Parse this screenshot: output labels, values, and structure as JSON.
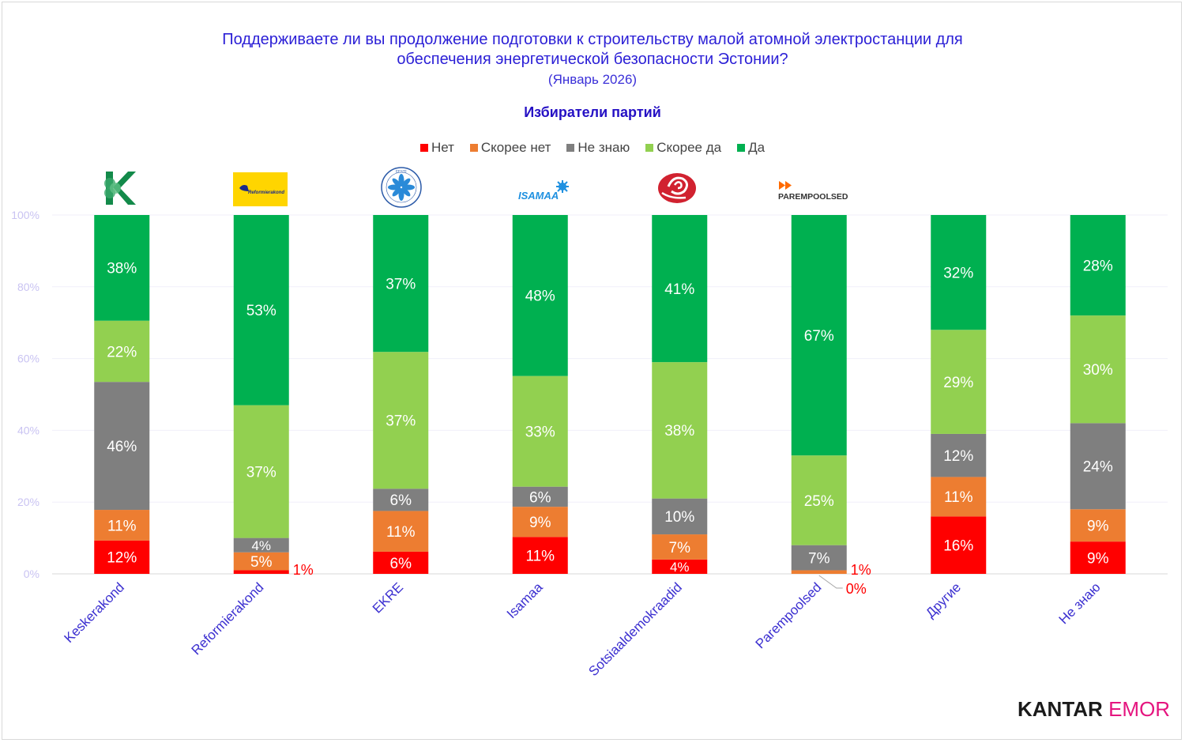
{
  "chart_data": {
    "type": "bar",
    "stacked": true,
    "normalized_to_100": true,
    "title": "Поддерживаете ли вы продолжение подготовки к строительству малой атомной электростанции для обеспечения энергетической безопасности Эстонии?",
    "title_line1": "Поддерживаете ли вы продолжение подготовки к строительству малой атомной электростанции для",
    "title_line2": "обеспечения энергетической безопасности Эстонии?",
    "date_note": "(Январь 2026)",
    "subtitle": "Избиратели партий",
    "xlabel": "",
    "ylabel": "",
    "ylim": [
      0,
      100
    ],
    "yticks": [
      "0%",
      "20%",
      "40%",
      "60%",
      "80%",
      "100%"
    ],
    "ytick_values": [
      0,
      20,
      40,
      60,
      80,
      100
    ],
    "grid": true,
    "legend_position": "top",
    "categories": [
      "Keskerakond",
      "Reformierakond",
      "EKRE",
      "Isamaa",
      "Sotsiaaldemokraadid",
      "Parempoolsed",
      "Другие",
      "Не знаю"
    ],
    "series": [
      {
        "name": "Нет",
        "color": "#ff0000",
        "values": [
          12,
          1,
          6,
          11,
          4,
          0,
          16,
          9
        ]
      },
      {
        "name": "Скорее нет",
        "color": "#ed7d31",
        "values": [
          11,
          5,
          11,
          9,
          7,
          1,
          11,
          9
        ]
      },
      {
        "name": "Не знаю",
        "color": "#7f7f7f",
        "values": [
          46,
          4,
          6,
          6,
          10,
          7,
          12,
          24
        ]
      },
      {
        "name": "Скорее да",
        "color": "#92d050",
        "values": [
          22,
          37,
          37,
          33,
          38,
          25,
          29,
          30
        ]
      },
      {
        "name": "Да",
        "color": "#00b050",
        "values": [
          38,
          53,
          37,
          48,
          41,
          67,
          32,
          28
        ]
      }
    ],
    "outside_labels": [
      {
        "category": "Reformierakond",
        "series": "Нет",
        "text": "1%"
      },
      {
        "category": "Parempoolsed",
        "series": "Скорее нет",
        "text": "1%"
      },
      {
        "category": "Parempoolsed",
        "series": "Нет",
        "text": "0%",
        "leader_line": true
      }
    ]
  },
  "logos": [
    {
      "party": "Keskerakond",
      "icon": "keskerakond-logo"
    },
    {
      "party": "Reformierakond",
      "icon": "reformierakond-logo",
      "text": "Reformierakond"
    },
    {
      "party": "EKRE",
      "icon": "ekre-logo",
      "text": "EESTI"
    },
    {
      "party": "Isamaa",
      "icon": "isamaa-logo",
      "text": "ISAMAA"
    },
    {
      "party": "Sotsiaaldemokraadid",
      "icon": "rose-logo"
    },
    {
      "party": "Parempoolsed",
      "icon": "parempoolsed-logo",
      "text": "PAREMPOOLSED"
    }
  ],
  "branding": {
    "part1": "KANTAR",
    "part2": "EMOR"
  },
  "colors": {
    "title": "#2b1fd6",
    "axis_label": "#3b2fd0",
    "tick": "#c9c3f2",
    "outside_label": "#ff0000"
  }
}
